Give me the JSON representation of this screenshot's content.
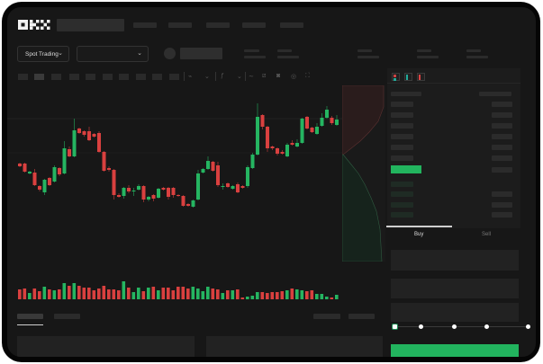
{
  "header": {
    "logo": "OKX"
  },
  "toolbar": {
    "market_dropdown": "Spot Trading"
  },
  "order_form": {
    "buy_tab": "Buy",
    "sell_tab": "Sell",
    "leverage_slider_level": 0
  },
  "colors": {
    "up": "#25b561",
    "down": "#d9403f",
    "background": "#171717",
    "accent_button": "#22b45e"
  },
  "chart_data": {
    "type": "candlestick",
    "ohlc": [
      [
        118,
        119,
        114,
        115
      ],
      [
        118,
        119,
        108,
        109
      ],
      [
        107,
        110,
        106,
        109
      ],
      [
        108,
        112,
        93,
        94
      ],
      [
        93,
        94,
        87,
        89
      ],
      [
        86,
        101,
        83,
        100
      ],
      [
        102,
        103,
        93,
        94
      ],
      [
        98,
        116,
        97,
        114
      ],
      [
        113,
        114,
        104,
        106
      ],
      [
        107,
        143,
        106,
        135
      ],
      [
        134,
        137,
        125,
        126
      ],
      [
        126,
        168,
        125,
        155
      ],
      [
        157,
        158,
        151,
        152
      ],
      [
        154,
        155,
        148,
        150
      ],
      [
        154,
        159,
        143,
        144
      ],
      [
        151,
        152,
        147,
        148
      ],
      [
        152,
        154,
        130,
        131
      ],
      [
        131,
        132,
        109,
        110
      ],
      [
        113,
        115,
        109,
        111
      ],
      [
        111,
        112,
        78,
        83
      ],
      [
        83,
        85,
        80,
        81
      ],
      [
        82,
        92,
        79,
        91
      ],
      [
        91,
        94,
        85,
        87
      ],
      [
        87,
        91,
        82,
        88
      ],
      [
        89,
        95,
        88,
        93
      ],
      [
        93,
        94,
        75,
        78
      ],
      [
        78,
        82,
        76,
        81
      ],
      [
        83,
        84,
        76,
        79
      ],
      [
        80,
        91,
        79,
        90
      ],
      [
        91,
        92,
        88,
        89
      ],
      [
        91,
        92,
        78,
        81
      ],
      [
        91,
        92,
        80,
        83
      ],
      [
        83,
        84,
        81,
        82
      ],
      [
        82,
        83,
        70,
        71
      ],
      [
        73,
        74,
        70,
        71
      ],
      [
        70,
        78,
        69,
        77
      ],
      [
        78,
        111,
        77,
        107
      ],
      [
        108,
        113,
        107,
        112
      ],
      [
        112,
        126,
        111,
        121
      ],
      [
        120,
        121,
        109,
        110
      ],
      [
        116,
        120,
        92,
        94
      ],
      [
        92,
        96,
        89,
        93
      ],
      [
        96,
        97,
        91,
        92
      ],
      [
        90,
        94,
        89,
        93
      ],
      [
        95,
        97,
        85,
        86
      ],
      [
        93,
        94,
        90,
        91
      ],
      [
        93,
        116,
        91,
        114
      ],
      [
        113,
        130,
        112,
        128
      ],
      [
        128,
        185,
        127,
        170
      ],
      [
        172,
        173,
        156,
        159
      ],
      [
        159,
        160,
        131,
        135
      ],
      [
        137,
        138,
        133,
        135
      ],
      [
        135,
        136,
        127,
        129
      ],
      [
        131,
        133,
        128,
        129
      ],
      [
        126,
        141,
        125,
        139
      ],
      [
        141,
        144,
        138,
        139
      ],
      [
        137,
        145,
        136,
        141
      ],
      [
        141,
        169,
        140,
        168
      ],
      [
        170,
        171,
        156,
        157
      ],
      [
        158,
        159,
        152,
        153
      ],
      [
        151,
        163,
        150,
        159
      ],
      [
        160,
        174,
        159,
        169
      ],
      [
        169,
        182,
        168,
        178
      ],
      [
        169,
        171,
        161,
        163
      ],
      [
        161,
        172,
        160,
        167
      ]
    ],
    "volume": [
      11,
      12,
      7,
      12,
      9,
      14,
      11,
      10,
      11,
      18,
      15,
      18,
      15,
      13,
      13,
      10,
      12,
      15,
      11,
      11,
      10,
      20,
      13,
      8,
      13,
      9,
      13,
      14,
      10,
      13,
      13,
      10,
      14,
      14,
      12,
      14,
      12,
      9,
      14,
      12,
      11,
      7,
      10,
      10,
      11,
      2,
      3,
      4,
      8,
      8,
      7,
      8,
      8,
      9,
      10,
      12,
      11,
      10,
      9,
      10,
      6,
      6,
      3,
      2,
      5
    ]
  }
}
